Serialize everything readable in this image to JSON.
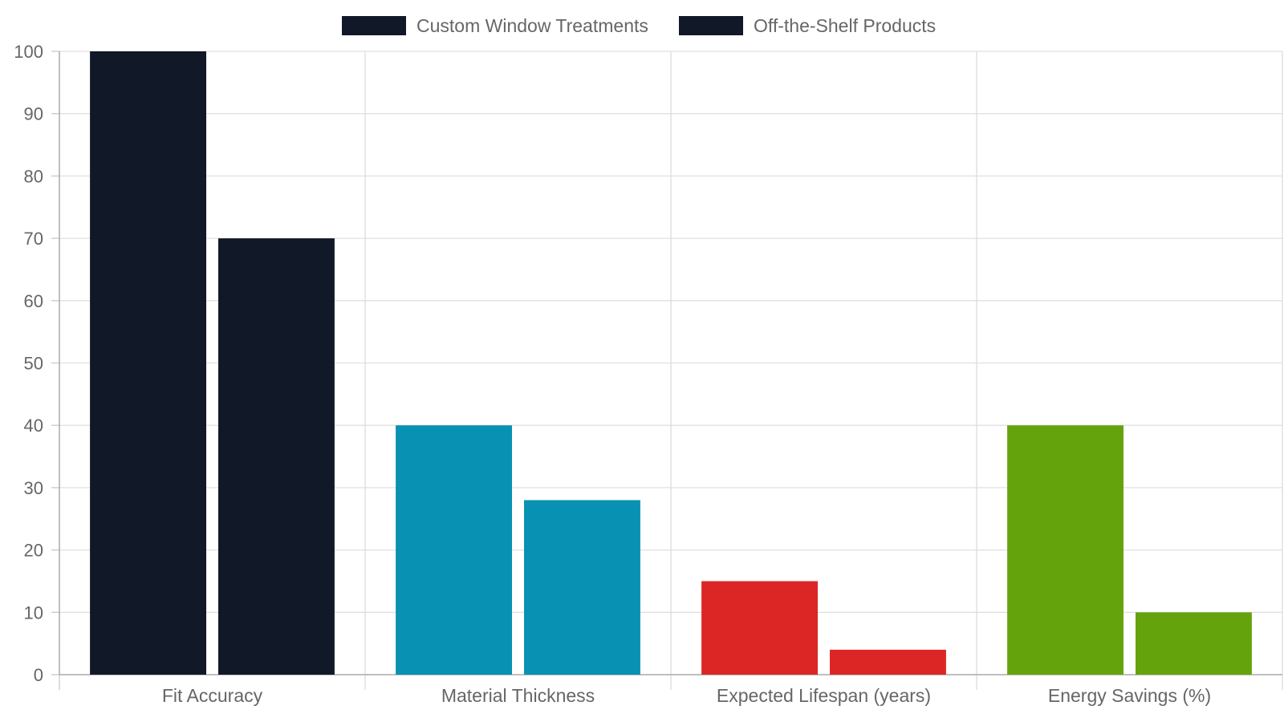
{
  "chart_data": {
    "type": "bar",
    "categories": [
      "Fit Accuracy",
      "Material Thickness",
      "Expected Lifespan (years)",
      "Energy Savings (%)"
    ],
    "series": [
      {
        "name": "Custom Window Treatments",
        "values": [
          100,
          40,
          15,
          40
        ]
      },
      {
        "name": "Off-the-Shelf Products",
        "values": [
          70,
          28,
          4,
          10
        ]
      }
    ],
    "category_colors": [
      "#111827",
      "#0891b2",
      "#dc2626",
      "#65a30d"
    ],
    "legend_colors": [
      "#111827",
      "#111827"
    ],
    "ylim": [
      0,
      100
    ],
    "yticks": [
      0,
      10,
      20,
      30,
      40,
      50,
      60,
      70,
      80,
      90,
      100
    ],
    "grid": true,
    "legend_position": "top-center",
    "title": "",
    "xlabel": "",
    "ylabel": ""
  }
}
